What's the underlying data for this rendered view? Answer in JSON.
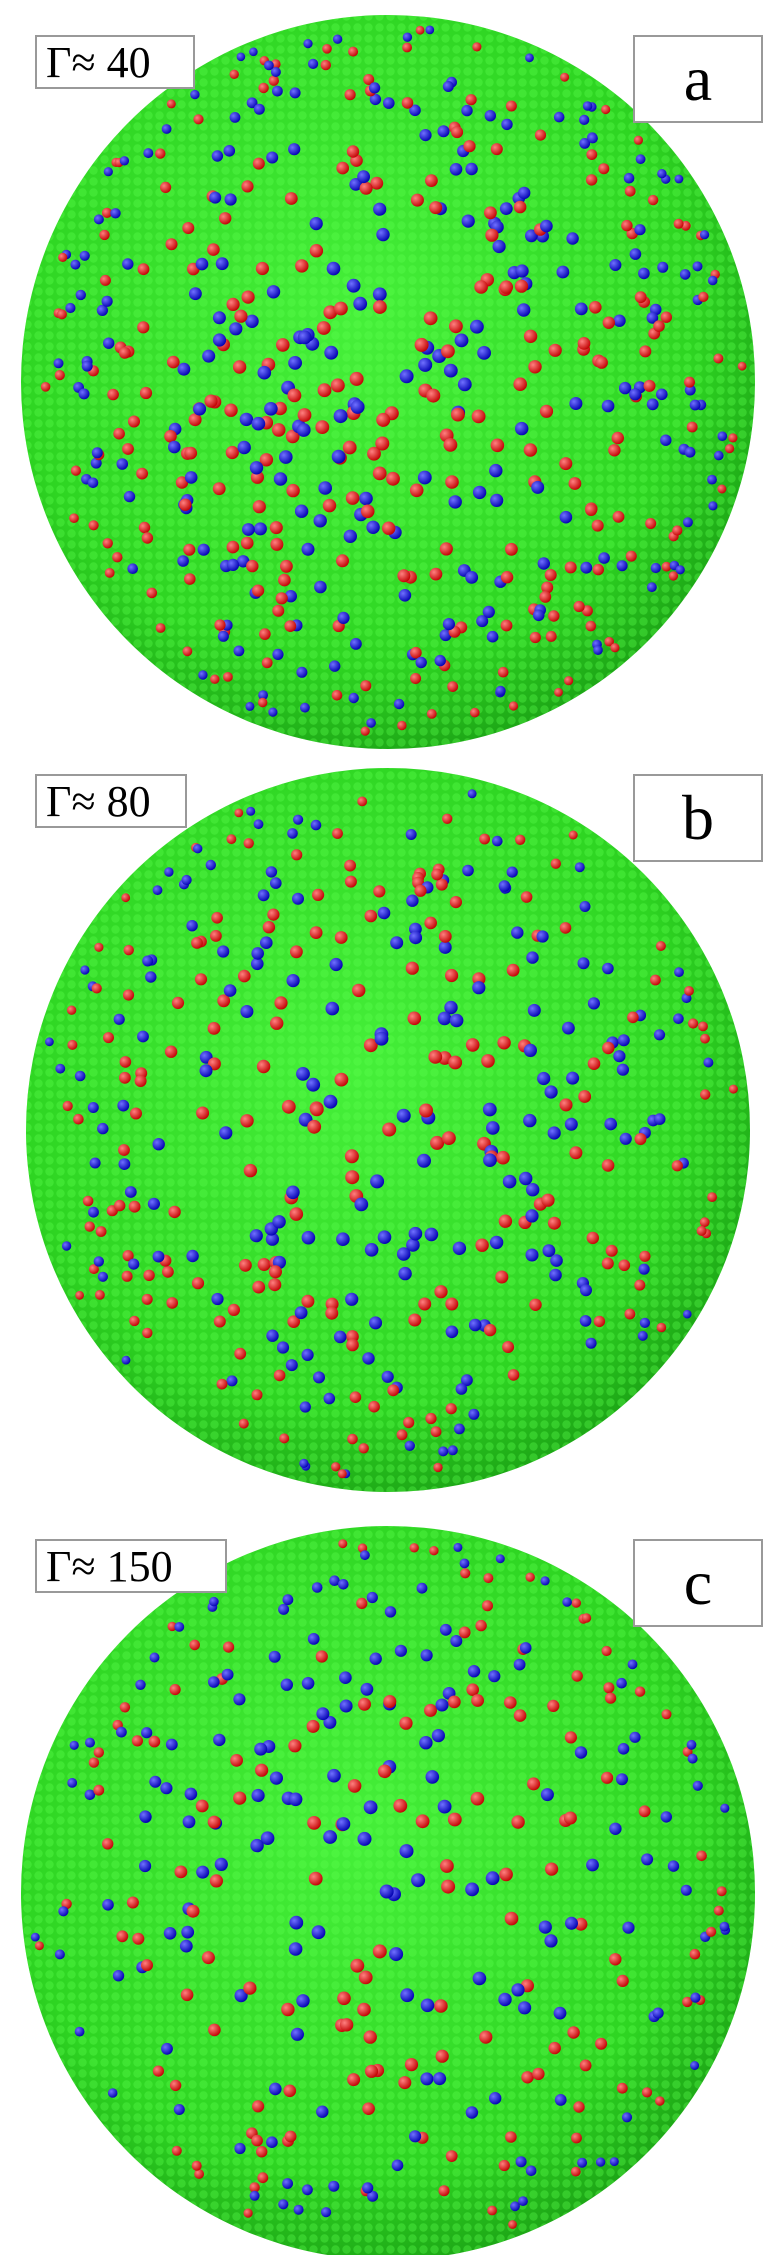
{
  "panels": [
    {
      "gamma": "Γ≈ 40",
      "letter": "a"
    },
    {
      "gamma": "Γ≈ 80",
      "letter": "b"
    },
    {
      "gamma": "Γ≈ 150",
      "letter": "c"
    }
  ]
}
